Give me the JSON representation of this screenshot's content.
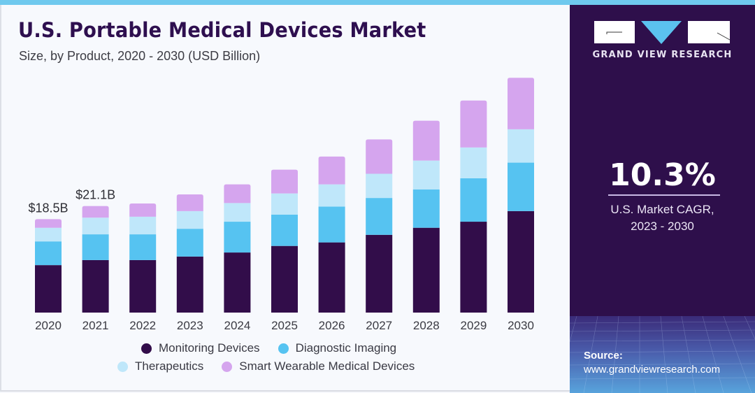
{
  "header": {
    "title": "U.S. Portable Medical Devices Market",
    "subtitle": "Size, by Product, 2020 - 2030 (USD Billion)"
  },
  "brand": {
    "name": "GRAND VIEW RESEARCH",
    "colors": {
      "primary": "#2e0f4b",
      "accent": "#5bc2ef",
      "top_strip": "#6fc9ee"
    }
  },
  "highlight": {
    "cagr_value": "10.3%",
    "cagr_label_line1": "U.S. Market CAGR,",
    "cagr_label_line2": "2023 - 2030"
  },
  "source": {
    "title": "Source:",
    "url": "www.grandviewresearch.com"
  },
  "chart_data": {
    "type": "bar",
    "stacked": true,
    "title": "U.S. Portable Medical Devices Market",
    "subtitle": "Size, by Product, 2020 - 2030 (USD Billion)",
    "xlabel": "",
    "ylabel": "",
    "ylim": [
      0,
      47
    ],
    "grid": false,
    "legend_position": "bottom",
    "categories": [
      "2020",
      "2021",
      "2022",
      "2023",
      "2024",
      "2025",
      "2026",
      "2027",
      "2028",
      "2029",
      "2030"
    ],
    "series": [
      {
        "name": "Monitoring Devices",
        "color": "#320d4a",
        "values": [
          9.4,
          10.4,
          10.4,
          11.1,
          11.9,
          13.2,
          13.9,
          15.4,
          16.8,
          18.0,
          20.1
        ]
      },
      {
        "name": "Diagnostic Imaging",
        "color": "#56c3f1",
        "values": [
          4.7,
          5.1,
          5.1,
          5.5,
          6.1,
          6.2,
          7.1,
          7.3,
          7.6,
          8.6,
          9.6
        ]
      },
      {
        "name": "Therapeutics",
        "color": "#bfe7fa",
        "values": [
          2.7,
          3.3,
          3.5,
          3.5,
          3.7,
          4.2,
          4.4,
          4.8,
          5.7,
          6.1,
          6.6
        ]
      },
      {
        "name": "Smart Wearable Medical Devices",
        "color": "#d5a5ee",
        "values": [
          1.7,
          2.3,
          2.6,
          3.3,
          3.7,
          4.7,
          5.5,
          6.8,
          7.9,
          9.3,
          10.2
        ]
      }
    ],
    "annotations": [
      {
        "category": "2020",
        "text": "$18.5B"
      },
      {
        "category": "2021",
        "text": "$21.1B"
      }
    ]
  }
}
